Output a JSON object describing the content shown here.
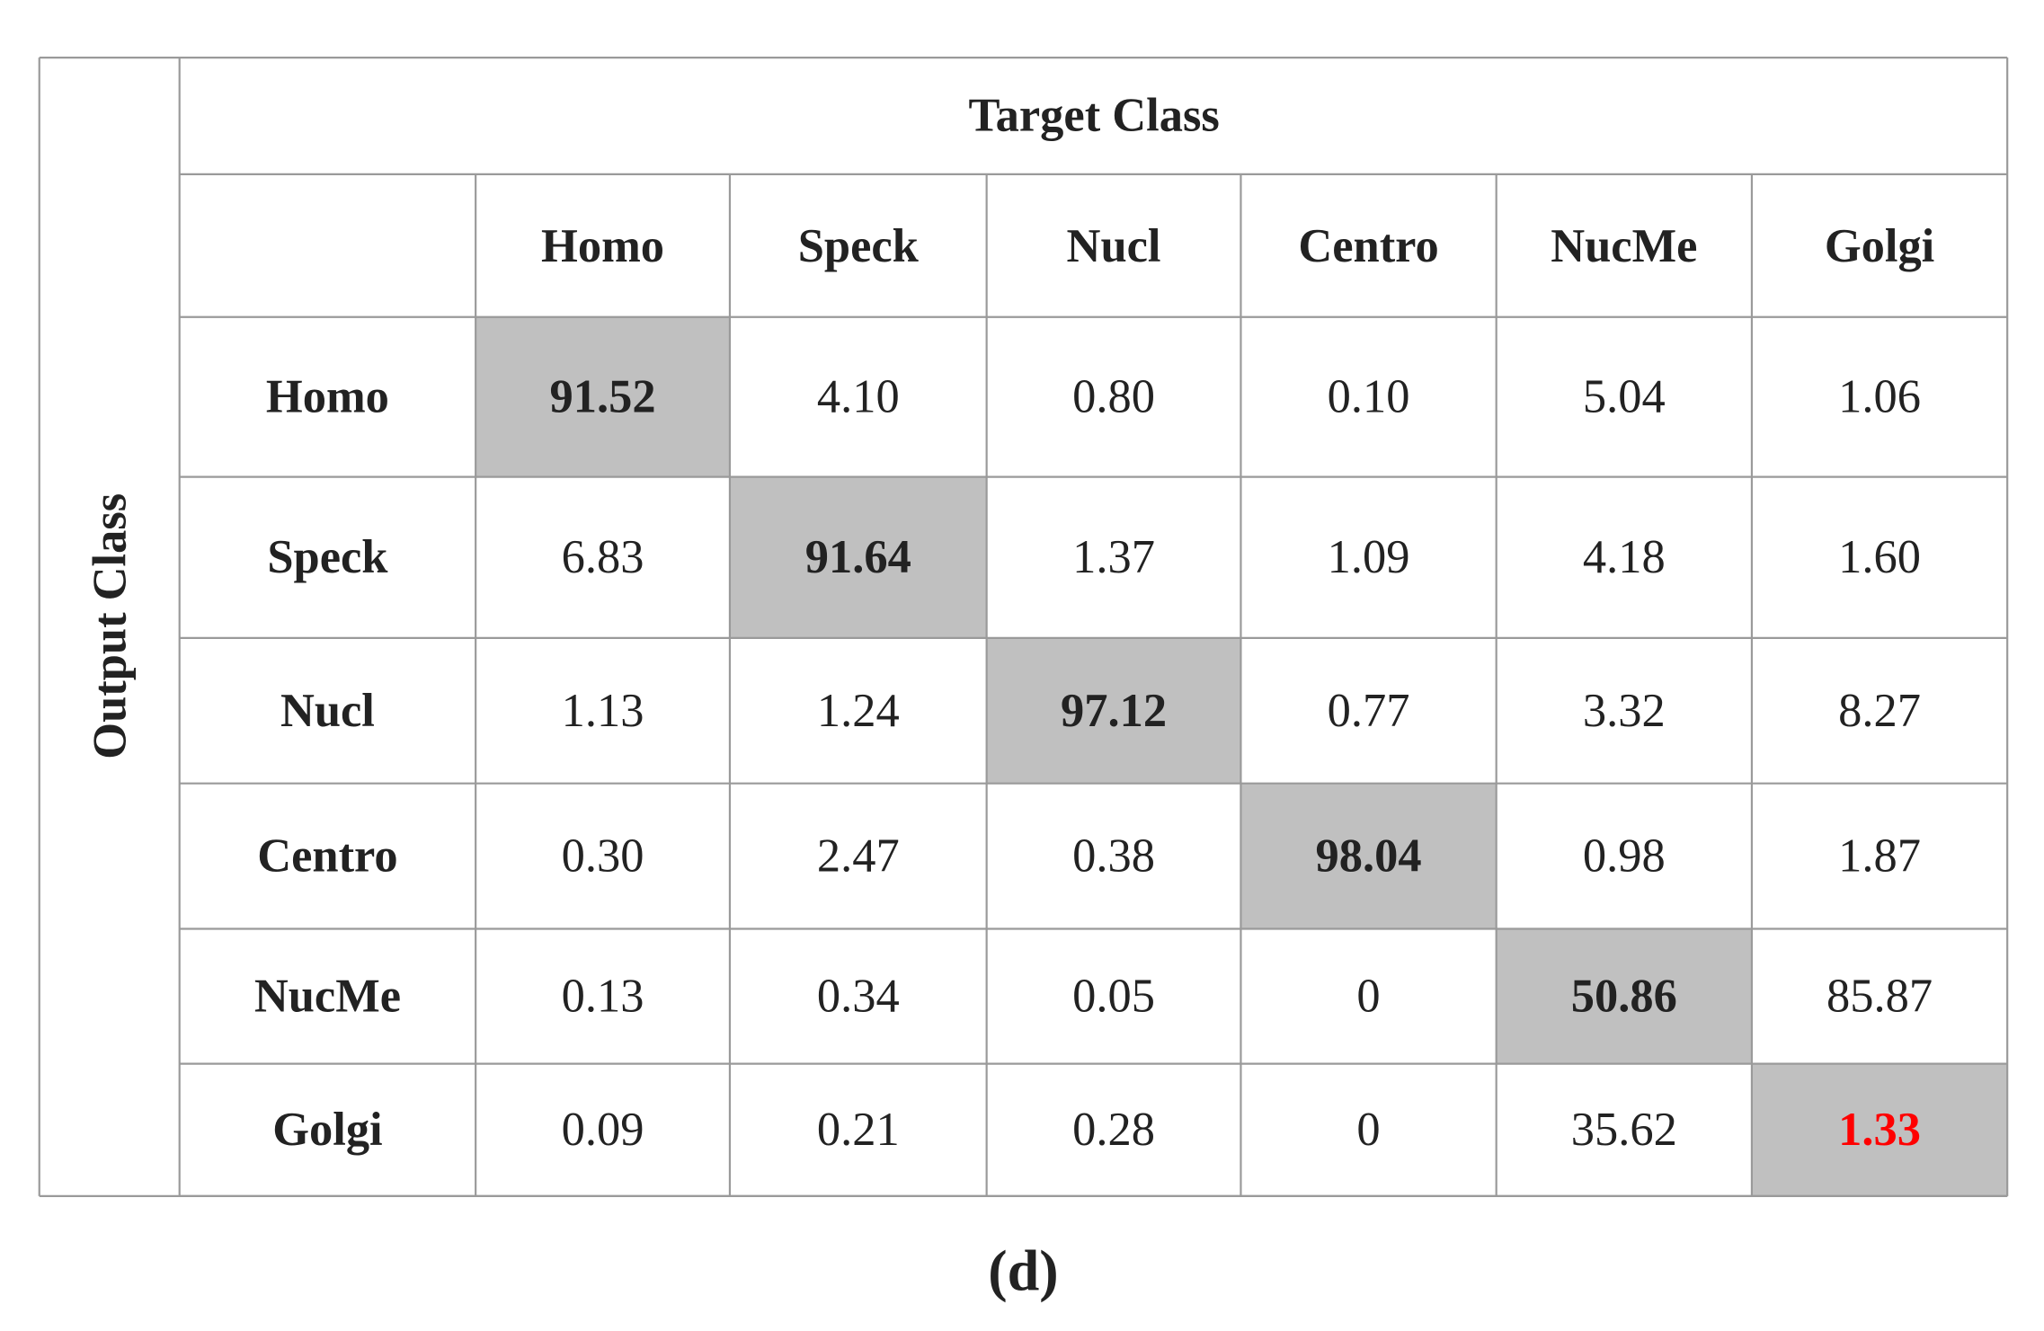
{
  "x_axis_label": "Target Class",
  "y_axis_label": "Output Class",
  "columns": [
    "Homo",
    "Speck",
    "Nucl",
    "Centro",
    "NucMe",
    "Golgi"
  ],
  "rows": [
    {
      "label": "Homo",
      "cells": [
        "91.52",
        "4.10",
        "0.80",
        "0.10",
        "5.04",
        "1.06"
      ]
    },
    {
      "label": "Speck",
      "cells": [
        "6.83",
        "91.64",
        "1.37",
        "1.09",
        "4.18",
        "1.60"
      ]
    },
    {
      "label": "Nucl",
      "cells": [
        "1.13",
        "1.24",
        "97.12",
        "0.77",
        "3.32",
        "8.27"
      ]
    },
    {
      "label": "Centro",
      "cells": [
        "0.30",
        "2.47",
        "0.38",
        "98.04",
        "0.98",
        "1.87"
      ]
    },
    {
      "label": "NucMe",
      "cells": [
        "0.13",
        "0.34",
        "0.05",
        "0",
        "50.86",
        "85.87"
      ]
    },
    {
      "label": "Golgi",
      "cells": [
        "0.09",
        "0.21",
        "0.28",
        "0",
        "35.62",
        "1.33"
      ]
    }
  ],
  "caption": "(d)"
}
